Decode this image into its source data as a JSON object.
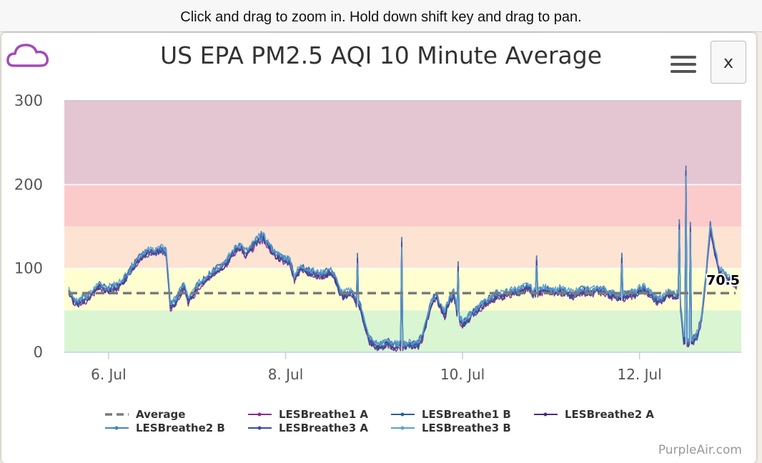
{
  "hint": "Click and drag to zoom in. Hold down shift key and drag to pan.",
  "title": "US EPA PM2.5 AQI 10 Minute Average",
  "close_label": "x",
  "credit": "PurpleAir.com",
  "icons": {
    "logo": "cloud-icon",
    "menu": "hamburger-menu-icon"
  },
  "chart_data": {
    "type": "line",
    "title": "US EPA PM2.5 AQI 10 Minute Average",
    "xlabel": "",
    "ylabel": "",
    "ylim": [
      0,
      300
    ],
    "yticks": [
      "0",
      "100",
      "200",
      "300"
    ],
    "xlim_days": [
      5.5,
      13.15
    ],
    "xticks": [
      {
        "day": 6,
        "label": "6. Jul"
      },
      {
        "day": 8,
        "label": "8. Jul"
      },
      {
        "day": 10,
        "label": "10. Jul"
      },
      {
        "day": 12,
        "label": "12. Jul"
      }
    ],
    "aqi_bands": [
      {
        "from": 0,
        "to": 50,
        "color": "#d9f5d2"
      },
      {
        "from": 50,
        "to": 100,
        "color": "#fefed1"
      },
      {
        "from": 100,
        "to": 150,
        "color": "#fde3d2"
      },
      {
        "from": 150,
        "to": 200,
        "color": "#fbcbcb"
      },
      {
        "from": 200,
        "to": 300,
        "color": "#e3c6d2"
      }
    ],
    "average": {
      "name": "Average",
      "value": 70.5,
      "label": "70.5",
      "color": "#7a7a7a"
    },
    "base": {
      "x": [
        5.55,
        5.6,
        5.65,
        5.7,
        5.75,
        5.8,
        5.85,
        5.9,
        5.95,
        6.0,
        6.05,
        6.1,
        6.15,
        6.2,
        6.25,
        6.3,
        6.35,
        6.4,
        6.45,
        6.5,
        6.55,
        6.6,
        6.65,
        6.7,
        6.75,
        6.8,
        6.82,
        6.85,
        6.9,
        6.95,
        7.0,
        7.05,
        7.1,
        7.15,
        7.2,
        7.25,
        7.3,
        7.35,
        7.4,
        7.45,
        7.5,
        7.55,
        7.6,
        7.65,
        7.7,
        7.75,
        7.8,
        7.85,
        7.9,
        7.95,
        8.0,
        8.05,
        8.1,
        8.15,
        8.2,
        8.25,
        8.3,
        8.35,
        8.4,
        8.45,
        8.5,
        8.55,
        8.6,
        8.65,
        8.7,
        8.75,
        8.8,
        8.85,
        8.9,
        8.95,
        9.0,
        9.05,
        9.1,
        9.15,
        9.2,
        9.25,
        9.3,
        9.35,
        9.4,
        9.45,
        9.5,
        9.55,
        9.6,
        9.65,
        9.7,
        9.75,
        9.8,
        9.85,
        9.9,
        9.95,
        10.0,
        10.05,
        10.1,
        10.15,
        10.2,
        10.25,
        10.3,
        10.35,
        10.4,
        10.45,
        10.5,
        10.55,
        10.6,
        10.65,
        10.7,
        10.75,
        10.8,
        10.85,
        10.9,
        10.95,
        11.0,
        11.05,
        11.1,
        11.15,
        11.2,
        11.25,
        11.3,
        11.35,
        11.4,
        11.45,
        11.5,
        11.55,
        11.6,
        11.65,
        11.7,
        11.75,
        11.8,
        11.85,
        11.9,
        11.95,
        12.0,
        12.05,
        12.1,
        12.15,
        12.2,
        12.25,
        12.3,
        12.35,
        12.4,
        12.45,
        12.5,
        12.55,
        12.6,
        12.65,
        12.7,
        12.75,
        12.8,
        12.85,
        12.9,
        12.95,
        13.0,
        13.05,
        13.1
      ],
      "y": [
        73,
        63,
        58,
        62,
        65,
        68,
        75,
        80,
        76,
        75,
        77,
        79,
        84,
        90,
        98,
        106,
        112,
        117,
        119,
        120,
        121,
        122,
        120,
        55,
        60,
        70,
        72,
        80,
        62,
        68,
        78,
        82,
        88,
        94,
        96,
        100,
        104,
        110,
        118,
        124,
        125,
        118,
        122,
        130,
        135,
        136,
        129,
        120,
        115,
        112,
        110,
        108,
        88,
        98,
        100,
        96,
        95,
        93,
        92,
        94,
        96,
        92,
        75,
        68,
        70,
        72,
        60,
        55,
        30,
        14,
        10,
        7,
        8,
        12,
        9,
        7,
        8,
        8,
        9,
        9,
        10,
        20,
        40,
        60,
        68,
        55,
        45,
        62,
        70,
        42,
        35,
        38,
        45,
        50,
        54,
        58,
        62,
        65,
        70,
        67,
        71,
        72,
        74,
        73,
        76,
        78,
        70,
        72,
        74,
        75,
        73,
        72,
        74,
        72,
        70,
        69,
        71,
        74,
        73,
        72,
        73,
        74,
        73,
        70,
        68,
        67,
        66,
        68,
        70,
        69,
        74,
        76,
        72,
        66,
        62,
        63,
        68,
        70,
        67,
        70,
        15,
        12,
        14,
        20,
        40,
        90,
        150,
        120,
        98,
        92,
        88,
        84,
        80
      ]
    },
    "series": [
      {
        "name": "LESBreathe1 A",
        "color": "#8a2d8e",
        "offset": -3,
        "seed": 1
      },
      {
        "name": "LESBreathe1 B",
        "color": "#2c5f98",
        "offset": 2,
        "seed": 2
      },
      {
        "name": "LESBreathe2 A",
        "color": "#4b2a84",
        "offset": -1,
        "seed": 3
      },
      {
        "name": "LESBreathe2 B",
        "color": "#3f83c0",
        "offset": 1,
        "seed": 4
      },
      {
        "name": "LESBreathe3 A",
        "color": "#3a4a9a",
        "offset": -2,
        "seed": 5
      },
      {
        "name": "LESBreathe3 B",
        "color": "#5aa0d0",
        "offset": 3,
        "seed": 6
      }
    ],
    "spikes": [
      {
        "x": 9.31,
        "y": 137
      },
      {
        "x": 9.95,
        "y": 108
      },
      {
        "x": 8.81,
        "y": 118
      },
      {
        "x": 11.8,
        "y": 118
      },
      {
        "x": 12.45,
        "y": 158
      },
      {
        "x": 12.53,
        "y": 222
      },
      {
        "x": 12.58,
        "y": 155
      },
      {
        "x": 10.84,
        "y": 115
      },
      {
        "x": 7.73,
        "y": 144
      }
    ]
  }
}
